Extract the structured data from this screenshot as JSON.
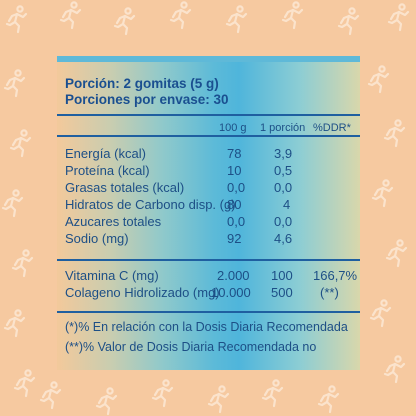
{
  "header": {
    "portion": "Porción: 2 gomitas (5 g)",
    "servings": "Porciones por envase: 30"
  },
  "columns": [
    "100 g",
    "1 porción",
    "%DDR*"
  ],
  "nutrients": [
    {
      "name": "Energía (kcal)",
      "per100": "78",
      "portion": "3,9"
    },
    {
      "name": "Proteína (kcal)",
      "per100": "10",
      "portion": "0,5"
    },
    {
      "name": "Grasas totales (kcal)",
      "per100": "0,0",
      "portion": "0,0"
    },
    {
      "name": "Hidratos de Carbono disp. (g)",
      "per100": "80",
      "portion": "4"
    },
    {
      "name": "Azucares totales",
      "per100": "0,0",
      "portion": "0,0"
    },
    {
      "name": "Sodio (mg)",
      "per100": "92",
      "portion": "4,6"
    }
  ],
  "extras": [
    {
      "name": "Vitamina C (mg)",
      "per100": "2.000",
      "portion": "100",
      "ddr": "166,7%"
    },
    {
      "name": "Colageno Hidrolizado (mg)",
      "per100": "10.000",
      "portion": "500",
      "ddr": "(**)"
    }
  ],
  "footnotes": [
    "(*)% En relación con la Dosis Diaria Recomendada",
    "(**)% Valor de Dosis Diaria Recomendada no"
  ],
  "colors": {
    "background": "#f6c9a0",
    "text": "#1d4f86",
    "rule": "#1f5fa0",
    "accent": "#5fb9d8"
  },
  "background_icon": "running-person-icon"
}
